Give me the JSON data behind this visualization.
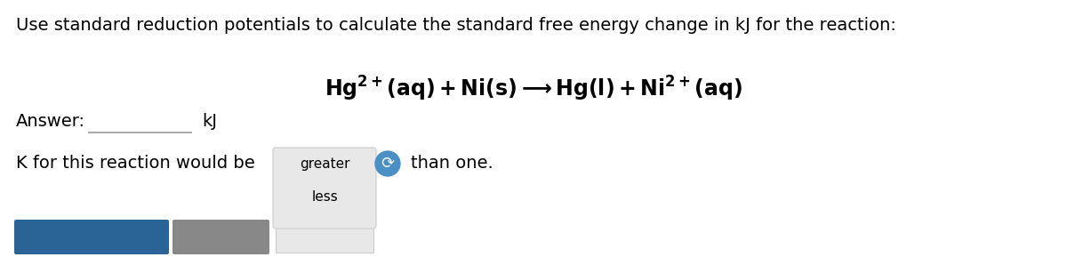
{
  "title_text": "Use standard reduction potentials to calculate the standard free energy change in kJ for the reaction:",
  "answer_label": "Answer:",
  "kj_label": "kJ",
  "k_text": "K for this reaction would be",
  "checkmark": "✓",
  "than_one": "than one.",
  "dropdown_option1": "greater",
  "dropdown_option2": "less",
  "bg_color": "#ffffff",
  "input_box_color": "#ffffff",
  "input_box_border": "#bbbbbb",
  "dropdown_bg": "#e8e8e8",
  "dropdown_border": "#cccccc",
  "blue_button_color": "#2a6496",
  "gray_button_color": "#888888",
  "arrow_button_color": "#4a90c4",
  "title_fontsize": 14,
  "equation_fontsize": 16,
  "body_fontsize": 14,
  "dropdown_fontsize": 11
}
